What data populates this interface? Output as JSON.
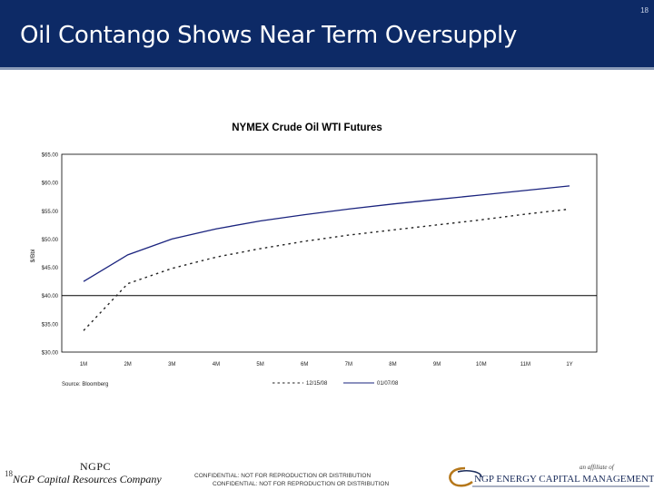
{
  "slide": {
    "title": "Oil Contango Shows Near Term Oversupply",
    "page_number": "18"
  },
  "footer": {
    "page_number": "18",
    "abbr": "NGPC",
    "company": "NGP Capital Resources Company",
    "confidential_1": "CONFIDENTIAL: NOT FOR REPRODUCTION OR DISTRIBUTION",
    "confidential_2": "CONFIDENTIAL: NOT FOR REPRODUCTION OR DISTRIBUTION",
    "affiliate": "an affiliate of",
    "logo_text": "NGP ENERGY CAPITAL MANAGEMENT"
  },
  "colors": {
    "title_bar": "#0d2a66",
    "series_solid": "#1a237e",
    "series_dashed": "#222222"
  },
  "chart_data": {
    "type": "line",
    "title": "NYMEX Crude Oil WTI Futures",
    "xlabel": "",
    "ylabel": "$/Bbl",
    "source": "Source: Bloomberg",
    "categories": [
      "1M",
      "2M",
      "3M",
      "4M",
      "5M",
      "6M",
      "7M",
      "8M",
      "9M",
      "10M",
      "11M",
      "1Y"
    ],
    "y_tick_labels": [
      "$30.00",
      "$35.00",
      "$40.00",
      "$45.00",
      "$50.00",
      "$55.00",
      "$60.00",
      "$65.00"
    ],
    "ylim": [
      30,
      65
    ],
    "reference_line": 40,
    "grid": false,
    "legend_position": "bottom-right",
    "series": [
      {
        "name": "12/15/08",
        "style": "dashed",
        "values": [
          33.8,
          42.1,
          44.8,
          46.8,
          48.3,
          49.6,
          50.7,
          51.6,
          52.5,
          53.4,
          54.4,
          55.3
        ]
      },
      {
        "name": "01/07/08",
        "style": "solid",
        "values": [
          42.5,
          47.2,
          50.0,
          51.8,
          53.2,
          54.3,
          55.3,
          56.2,
          57.0,
          57.8,
          58.6,
          59.4
        ]
      }
    ]
  }
}
